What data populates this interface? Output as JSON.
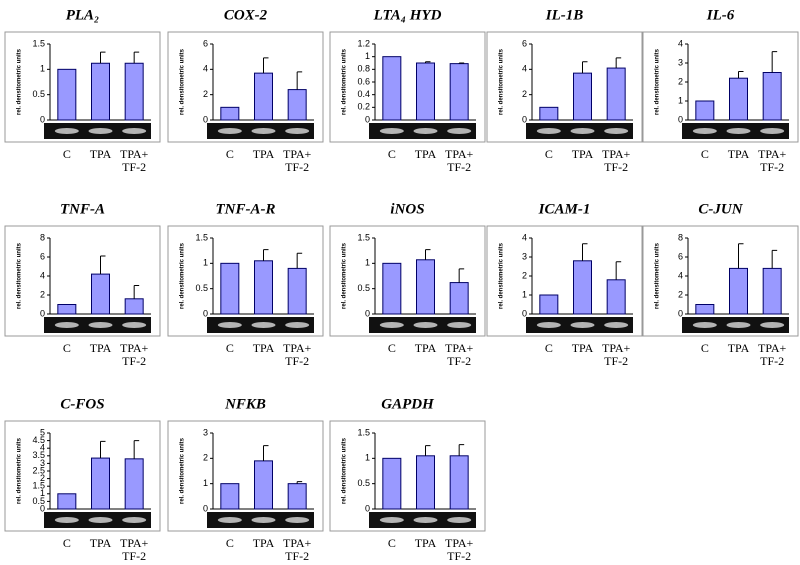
{
  "chart_data": [
    {
      "type": "bar",
      "title": "PLA₂",
      "y_label": "rel. densitometric units",
      "categories": [
        "C",
        "TPA",
        "TPA+ TF-2"
      ],
      "values": [
        1,
        1.12,
        1.12
      ],
      "errors": [
        null,
        0.22,
        0.22
      ],
      "color": "#9999ff",
      "ylim": [
        0,
        1.5
      ],
      "yticks": [
        0,
        0.5,
        1,
        1.5
      ]
    },
    {
      "type": "bar",
      "title": "COX-2",
      "y_label": "rel. densitometric units",
      "categories": [
        "C",
        "TPA",
        "TPA+ TF-2"
      ],
      "values": [
        1,
        3.7,
        2.4
      ],
      "errors": [
        null,
        1.2,
        1.4
      ],
      "color": "#9999ff",
      "ylim": [
        0,
        6
      ],
      "yticks": [
        0,
        2,
        4,
        6
      ]
    },
    {
      "type": "bar",
      "title": "LTA₄ HYD",
      "y_label": "rel. densitometric units",
      "categories": [
        "C",
        "TPA",
        "TPA+ TF-2"
      ],
      "values": [
        1,
        0.9,
        0.89
      ],
      "errors": [
        null,
        0.02,
        0.01
      ],
      "color": "#9999ff",
      "ylim": [
        0,
        1.2
      ],
      "yticks": [
        0,
        0.2,
        0.4,
        0.6,
        0.8,
        1,
        1.2
      ]
    },
    {
      "type": "bar",
      "title": "IL-1B",
      "y_label": "rel. densitometric units",
      "categories": [
        "C",
        "TPA",
        "TPA+ TF-2"
      ],
      "values": [
        1,
        3.7,
        4.1
      ],
      "errors": [
        null,
        0.9,
        0.8
      ],
      "color": "#9999ff",
      "ylim": [
        0,
        6
      ],
      "yticks": [
        0,
        2,
        4,
        6
      ]
    },
    {
      "type": "bar",
      "title": "IL-6",
      "y_label": "rel. densitometric units",
      "categories": [
        "C",
        "TPA",
        "TPA+ TF-2"
      ],
      "values": [
        1,
        2.2,
        2.5
      ],
      "errors": [
        null,
        0.35,
        1.1
      ],
      "color": "#9999ff",
      "ylim": [
        0,
        4
      ],
      "yticks": [
        0,
        1,
        2,
        3,
        4
      ]
    },
    {
      "type": "bar",
      "title": "TNF-A",
      "y_label": "rel. densitometric units",
      "categories": [
        "C",
        "TPA",
        "TPA+ TF-2"
      ],
      "values": [
        1,
        4.2,
        1.6
      ],
      "errors": [
        null,
        1.9,
        1.4
      ],
      "color": "#9999ff",
      "ylim": [
        0,
        8
      ],
      "yticks": [
        0,
        2,
        4,
        6,
        8
      ]
    },
    {
      "type": "bar",
      "title": "TNF-A-R",
      "y_label": "rel. densitometric units",
      "categories": [
        "C",
        "TPA",
        "TPA+ TF-2"
      ],
      "values": [
        1,
        1.05,
        0.9
      ],
      "errors": [
        null,
        0.22,
        0.3
      ],
      "color": "#9999ff",
      "ylim": [
        0,
        1.5
      ],
      "yticks": [
        0,
        0.5,
        1,
        1.5
      ]
    },
    {
      "type": "bar",
      "title": "iNOS",
      "y_label": "rel. densitometric units",
      "categories": [
        "C",
        "TPA",
        "TPA+ TF-2"
      ],
      "values": [
        1,
        1.07,
        0.62
      ],
      "errors": [
        null,
        0.2,
        0.27
      ],
      "color": "#9999ff",
      "ylim": [
        0,
        1.5
      ],
      "yticks": [
        0,
        0.5,
        1,
        1.5
      ]
    },
    {
      "type": "bar",
      "title": "ICAM-1",
      "y_label": "rel. densitometric units",
      "categories": [
        "C",
        "TPA",
        "TPA+ TF-2"
      ],
      "values": [
        1,
        2.8,
        1.8
      ],
      "errors": [
        null,
        0.9,
        0.95
      ],
      "color": "#9999ff",
      "ylim": [
        0,
        4
      ],
      "yticks": [
        0,
        1,
        2,
        3,
        4
      ]
    },
    {
      "type": "bar",
      "title": "C-JUN",
      "y_label": "rel. densitometric units",
      "categories": [
        "C",
        "TPA",
        "TPA+ TF-2"
      ],
      "values": [
        1,
        4.8,
        4.8
      ],
      "errors": [
        null,
        2.6,
        1.9
      ],
      "color": "#9999ff",
      "ylim": [
        0,
        8
      ],
      "yticks": [
        0,
        2,
        4,
        6,
        8
      ]
    },
    {
      "type": "bar",
      "title": "C-FOS",
      "y_label": "rel. densitometric units",
      "categories": [
        "C",
        "TPA",
        "TPA+ TF-2"
      ],
      "values": [
        1,
        3.35,
        3.3
      ],
      "errors": [
        null,
        1.1,
        1.2
      ],
      "color": "#9999ff",
      "ylim": [
        0,
        5
      ],
      "yticks": [
        0,
        0.5,
        1,
        1.5,
        2,
        2.5,
        3,
        3.5,
        4,
        4.5,
        5
      ]
    },
    {
      "type": "bar",
      "title": "NFKB",
      "y_label": "rel. densitometric units",
      "categories": [
        "C",
        "TPA",
        "TPA+ TF-2"
      ],
      "values": [
        1,
        1.9,
        1.0
      ],
      "errors": [
        null,
        0.6,
        0.08
      ],
      "color": "#9999ff",
      "ylim": [
        0,
        3
      ],
      "yticks": [
        0,
        1,
        2,
        3
      ]
    },
    {
      "type": "bar",
      "title": "GAPDH",
      "y_label": "rel. densitometric units",
      "categories": [
        "C",
        "TPA",
        "TPA+ TF-2"
      ],
      "values": [
        1,
        1.05,
        1.05
      ],
      "errors": [
        null,
        0.2,
        0.22
      ],
      "color": "#9999ff",
      "ylim": [
        0,
        1.5
      ],
      "yticks": [
        0,
        0.5,
        1,
        1.5
      ]
    }
  ]
}
